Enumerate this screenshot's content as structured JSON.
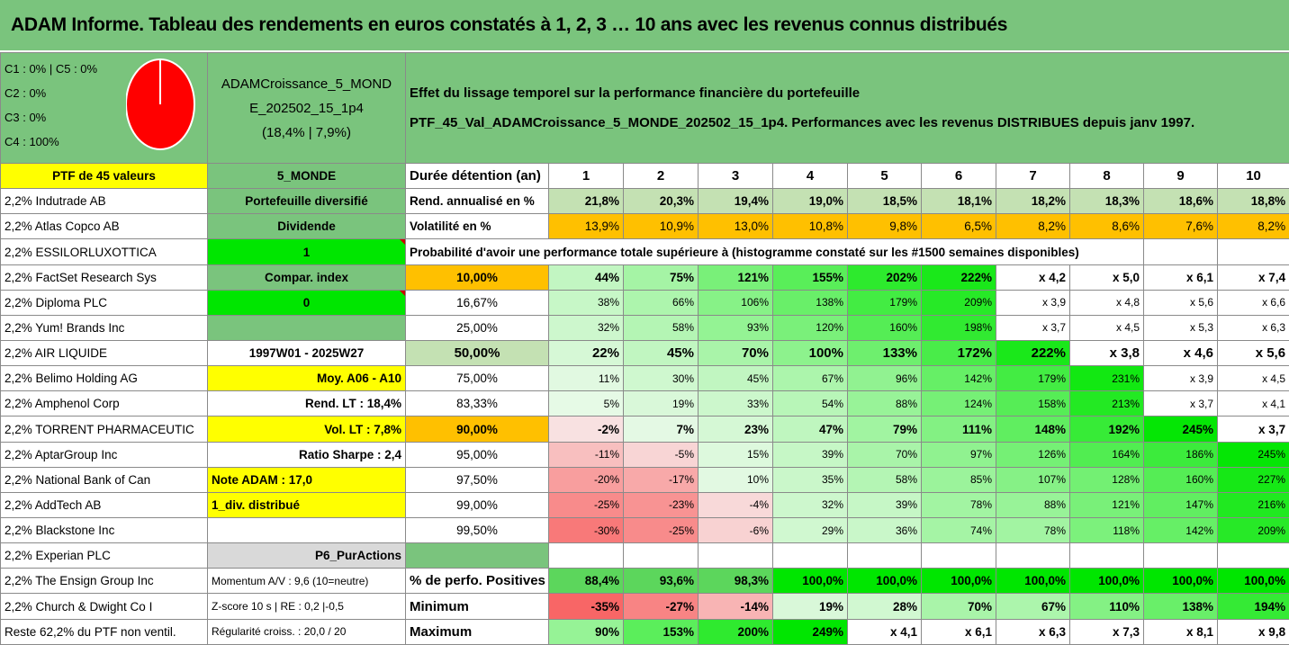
{
  "title": "ADAM Informe. Tableau des rendements en euros constatés à 1, 2, 3 … 10 ans avec les revenus connus distribués",
  "categories_text": [
    "C1 : 0% | C5 : 0%",
    "C2 : 0%",
    "C3 : 0%",
    "C4 : 100%"
  ],
  "pie": {
    "color": "#ff0000",
    "stroke": "#ffffff",
    "share_pct": 100
  },
  "fund": {
    "name_line1": "ADAMCroissance_5_MOND",
    "name_line2": "E_202502_15_1p4",
    "name_line3": "(18,4% | 7,9%)",
    "region": "5_MONDE"
  },
  "effect_line1": "Effet du lissage temporel sur la performance financière du portefeuille",
  "effect_line2": "PTF_45_Val_ADAMCroissance_5_MONDE_202502_15_1p4. Performances avec les revenus DISTRIBUES depuis janv 1997.",
  "ptf_label": "PTF de 45 valeurs",
  "duration_label": "Durée détention (an)",
  "years": [
    "1",
    "2",
    "3",
    "4",
    "5",
    "6",
    "7",
    "8",
    "9",
    "10"
  ],
  "rend_label": "Rend. annualisé en %",
  "rend": [
    "21,8%",
    "20,3%",
    "19,4%",
    "19,0%",
    "18,5%",
    "18,1%",
    "18,2%",
    "18,3%",
    "18,6%",
    "18,8%"
  ],
  "vol_label": "Volatilité en %",
  "vol": [
    "13,9%",
    "10,9%",
    "13,0%",
    "10,8%",
    "9,8%",
    "6,5%",
    "8,2%",
    "8,6%",
    "7,6%",
    "8,2%"
  ],
  "prob_label": "Probabilité d'avoir une performance totale supérieure à (histogramme constaté sur les #1500 semaines disponibles)",
  "holdings": [
    "2,2% Indutrade AB",
    "2,2% Atlas Copco AB",
    "2,2% ESSILORLUXOTTICA",
    "2,2% FactSet Research Sys",
    "2,2% Diploma PLC",
    "2,2% Yum! Brands Inc",
    "2,2% AIR LIQUIDE",
    "2,2% Belimo Holding AG",
    "2,2% Amphenol Corp",
    "2,2% TORRENT PHARMACEUTIC",
    "2,2% AptarGroup Inc",
    "2,2% National Bank of Can",
    "2,2% AddTech AB",
    "2,2% Blackstone Inc",
    "2,2% Experian PLC",
    "2,2% The Ensign Group Inc",
    "2,2% Church & Dwight Co I",
    "Reste 62,2% du PTF non ventil."
  ],
  "side": {
    "portefeuille": "Portefeuille diversifié",
    "dividende": "Dividende",
    "dividende_val": "1",
    "compar": "Compar. index",
    "compar_val": "0",
    "period": "1997W01 - 2025W27",
    "moy": "Moy. A06 - A10",
    "rend_lt": "Rend. LT : 18,4%",
    "vol_lt": "Vol. LT : 7,8%",
    "sharpe": "Ratio Sharpe : 2,4",
    "note": "Note ADAM : 17,0",
    "div": "1_div. distribué",
    "pur": "P6_PurActions",
    "momentum": "Momentum A/V : 9,6 (10=neutre)",
    "zscore": "Z-score 10 s | RE : 0,2 |-0,5",
    "regularite": "Régularité croiss. : 20,0 / 20"
  },
  "prob_rows": [
    {
      "p": "10,00%",
      "v": [
        "44%",
        "75%",
        "121%",
        "155%",
        "202%",
        "222%",
        "x 4,2",
        "x 5,0",
        "x 6,1",
        "x 7,4"
      ]
    },
    {
      "p": "16,67%",
      "v": [
        "38%",
        "66%",
        "106%",
        "138%",
        "179%",
        "209%",
        "x 3,9",
        "x 4,8",
        "x 5,6",
        "x 6,6"
      ]
    },
    {
      "p": "25,00%",
      "v": [
        "32%",
        "58%",
        "93%",
        "120%",
        "160%",
        "198%",
        "x 3,7",
        "x 4,5",
        "x 5,3",
        "x 6,3"
      ]
    },
    {
      "p": "50,00%",
      "v": [
        "22%",
        "45%",
        "70%",
        "100%",
        "133%",
        "172%",
        "222%",
        "x 3,8",
        "x 4,6",
        "x 5,6"
      ]
    },
    {
      "p": "75,00%",
      "v": [
        "11%",
        "30%",
        "45%",
        "67%",
        "96%",
        "142%",
        "179%",
        "231%",
        "x 3,9",
        "x 4,5"
      ]
    },
    {
      "p": "83,33%",
      "v": [
        "5%",
        "19%",
        "33%",
        "54%",
        "88%",
        "124%",
        "158%",
        "213%",
        "x 3,7",
        "x 4,1"
      ]
    },
    {
      "p": "90,00%",
      "v": [
        "-2%",
        "7%",
        "23%",
        "47%",
        "79%",
        "111%",
        "148%",
        "192%",
        "245%",
        "x 3,7"
      ]
    },
    {
      "p": "95,00%",
      "v": [
        "-11%",
        "-5%",
        "15%",
        "39%",
        "70%",
        "97%",
        "126%",
        "164%",
        "186%",
        "245%"
      ]
    },
    {
      "p": "97,50%",
      "v": [
        "-20%",
        "-17%",
        "10%",
        "35%",
        "58%",
        "85%",
        "107%",
        "128%",
        "160%",
        "227%"
      ]
    },
    {
      "p": "99,00%",
      "v": [
        "-25%",
        "-23%",
        "-4%",
        "32%",
        "39%",
        "78%",
        "88%",
        "121%",
        "147%",
        "216%"
      ]
    },
    {
      "p": "99,50%",
      "v": [
        "-30%",
        "-25%",
        "-6%",
        "29%",
        "36%",
        "74%",
        "78%",
        "118%",
        "142%",
        "209%"
      ]
    }
  ],
  "pos_label": "% de perfo. Positives",
  "pos": [
    "88,4%",
    "93,6%",
    "98,3%",
    "100,0%",
    "100,0%",
    "100,0%",
    "100,0%",
    "100,0%",
    "100,0%",
    "100,0%"
  ],
  "min_label": "Minimum",
  "min": [
    "-35%",
    "-27%",
    "-14%",
    "19%",
    "28%",
    "70%",
    "67%",
    "110%",
    "138%",
    "194%"
  ],
  "max_label": "Maximum",
  "max": [
    "90%",
    "153%",
    "200%",
    "249%",
    "x 4,1",
    "x 6,1",
    "x 6,3",
    "x 7,3",
    "x 8,1",
    "x 9,8"
  ]
}
